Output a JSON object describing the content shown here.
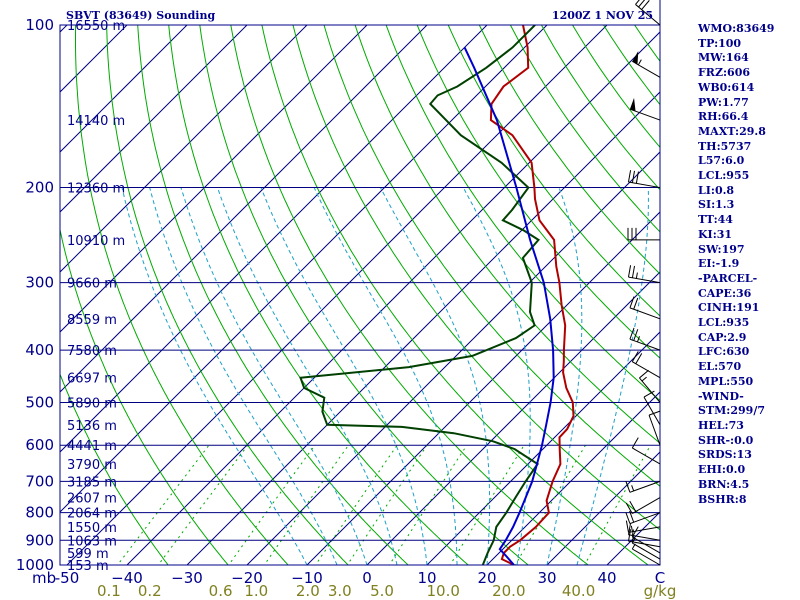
{
  "header": {
    "station": "SBVT (83649) Sounding",
    "time": "1200Z  1 NOV 25"
  },
  "chart_data": {
    "type": "line",
    "title": "SBVT (83649) Sounding",
    "subtitle": "1200Z  1 NOV 25",
    "x_axis": {
      "units_label": "mb",
      "temperature_ticks": [
        -50,
        -40,
        -30,
        -20,
        -10,
        0,
        10,
        20,
        30,
        40
      ],
      "temperature_tick_labels": [
        "-50",
        "−40",
        "−30",
        "−20",
        "−10",
        "0",
        "10",
        "20",
        "30",
        "40"
      ],
      "xlim": [
        -50,
        50
      ],
      "mixing_ratio_labels": [
        "0.1",
        "0.2",
        "0.6",
        "1.0",
        "2.0",
        "3.0",
        "5.0",
        "10.0",
        "20.0",
        "40.0"
      ],
      "mixing_ratio_values": [
        0.1,
        0.2,
        0.6,
        1.0,
        2.0,
        3.0,
        5.0,
        10.0,
        20.0,
        40.0
      ],
      "mixing_ratio_units": "g/kg",
      "corner_label": "C"
    },
    "y_axis": {
      "pressure_ticks": [
        100,
        200,
        300,
        400,
        500,
        600,
        700,
        800,
        900,
        1000
      ],
      "log_scale": true,
      "ylim": [
        1000,
        100
      ]
    },
    "height_labels": [
      {
        "p": 100,
        "label": "16550 m"
      },
      {
        "p": 150,
        "label": "14140 m"
      },
      {
        "p": 200,
        "label": "12360 m"
      },
      {
        "p": 250,
        "label": "10910 m"
      },
      {
        "p": 300,
        "label": "9660 m"
      },
      {
        "p": 350,
        "label": "8559 m"
      },
      {
        "p": 400,
        "label": "7580 m"
      },
      {
        "p": 450,
        "label": "6697 m"
      },
      {
        "p": 500,
        "label": "5890 m"
      },
      {
        "p": 550,
        "label": "5136 m"
      },
      {
        "p": 600,
        "label": "4441 m"
      },
      {
        "p": 650,
        "label": "3790 m"
      },
      {
        "p": 700,
        "label": "3185 m"
      },
      {
        "p": 750,
        "label": "2607 m"
      },
      {
        "p": 800,
        "label": "2064 m"
      },
      {
        "p": 850,
        "label": "1550 m"
      },
      {
        "p": 900,
        "label": "1063 m"
      },
      {
        "p": 950,
        "label": "599 m"
      },
      {
        "p": 1000,
        "label": "153 m"
      }
    ],
    "series": [
      {
        "name": "temperature",
        "color": "#b00000",
        "points": [
          [
            1000,
            24.5
          ],
          [
            975,
            21.5
          ],
          [
            950,
            20.8
          ],
          [
            925,
            20.8
          ],
          [
            900,
            21.4
          ],
          [
            850,
            21.8
          ],
          [
            800,
            21.6
          ],
          [
            760,
            19.2
          ],
          [
            700,
            17.0
          ],
          [
            650,
            15.4
          ],
          [
            610,
            12.8
          ],
          [
            580,
            10.8
          ],
          [
            560,
            10.7
          ],
          [
            530,
            9.6
          ],
          [
            500,
            7.2
          ],
          [
            470,
            3.7
          ],
          [
            440,
            0.6
          ],
          [
            420,
            -1.1
          ],
          [
            400,
            -3.0
          ],
          [
            360,
            -6.9
          ],
          [
            330,
            -10.9
          ],
          [
            300,
            -15.0
          ],
          [
            280,
            -18.2
          ],
          [
            250,
            -23.0
          ],
          [
            230,
            -28.7
          ],
          [
            210,
            -33.0
          ],
          [
            200,
            -35.0
          ],
          [
            180,
            -39.6
          ],
          [
            160,
            -47.4
          ],
          [
            150,
            -53.5
          ],
          [
            140,
            -56.1
          ],
          [
            130,
            -57.0
          ],
          [
            120,
            -56.0
          ],
          [
            110,
            -59.5
          ],
          [
            100,
            -64.0
          ]
        ]
      },
      {
        "name": "dewpoint",
        "color": "#004000",
        "points": [
          [
            1000,
            19.3
          ],
          [
            950,
            18.1
          ],
          [
            900,
            17.0
          ],
          [
            850,
            15.2
          ],
          [
            800,
            14.5
          ],
          [
            750,
            13.5
          ],
          [
            700,
            12.5
          ],
          [
            650,
            11.6
          ],
          [
            610,
            5.3
          ],
          [
            590,
            0.4
          ],
          [
            570,
            -7.5
          ],
          [
            555,
            -17.2
          ],
          [
            550,
            -30.0
          ],
          [
            520,
            -33.0
          ],
          [
            490,
            -35.0
          ],
          [
            470,
            -40.0
          ],
          [
            450,
            -42.3
          ],
          [
            430,
            -26.0
          ],
          [
            410,
            -17.3
          ],
          [
            380,
            -13.0
          ],
          [
            360,
            -12.0
          ],
          [
            340,
            -15.0
          ],
          [
            300,
            -19.6
          ],
          [
            270,
            -25.2
          ],
          [
            250,
            -25.6
          ],
          [
            240,
            -29.7
          ],
          [
            230,
            -34.8
          ],
          [
            220,
            -35.0
          ],
          [
            200,
            -36.0
          ],
          [
            180,
            -44.6
          ],
          [
            160,
            -56.0
          ],
          [
            140,
            -66.3
          ],
          [
            135,
            -66.5
          ],
          [
            130,
            -64.7
          ],
          [
            120,
            -63.0
          ],
          [
            110,
            -62.0
          ],
          [
            100,
            -62.0
          ]
        ]
      },
      {
        "name": "parcel",
        "color": "#0000cc",
        "points": [
          [
            1000,
            24.5
          ],
          [
            960,
            21.5
          ],
          [
            935,
            19.5
          ],
          [
            900,
            19.0
          ],
          [
            850,
            18.0
          ],
          [
            800,
            16.7
          ],
          [
            750,
            15.2
          ],
          [
            700,
            13.6
          ],
          [
            650,
            11.5
          ],
          [
            600,
            9.2
          ],
          [
            550,
            6.5
          ],
          [
            500,
            3.5
          ],
          [
            450,
            -0.1
          ],
          [
            400,
            -4.8
          ],
          [
            350,
            -10.5
          ],
          [
            300,
            -17.6
          ],
          [
            250,
            -27.0
          ],
          [
            200,
            -38.0
          ],
          [
            150,
            -52.5
          ],
          [
            120,
            -65.0
          ],
          [
            110,
            -70.0
          ]
        ]
      }
    ],
    "wind_barbs": [
      {
        "p": 1000,
        "dir": 300,
        "spd": 5
      },
      {
        "p": 975,
        "dir": 300,
        "spd": 5
      },
      {
        "p": 950,
        "dir": 300,
        "spd": 10
      },
      {
        "p": 925,
        "dir": 280,
        "spd": 15
      },
      {
        "p": 900,
        "dir": 280,
        "spd": 15
      },
      {
        "p": 850,
        "dir": 260,
        "spd": 15
      },
      {
        "p": 800,
        "dir": 250,
        "spd": 20
      },
      {
        "p": 750,
        "dir": 240,
        "spd": 20
      },
      {
        "p": 700,
        "dir": 250,
        "spd": 15
      },
      {
        "p": 650,
        "dir": 300,
        "spd": 10
      },
      {
        "p": 600,
        "dir": 340,
        "spd": 10
      },
      {
        "p": 550,
        "dir": 330,
        "spd": 10
      },
      {
        "p": 500,
        "dir": 320,
        "spd": 15
      },
      {
        "p": 450,
        "dir": 300,
        "spd": 20
      },
      {
        "p": 400,
        "dir": 290,
        "spd": 25
      },
      {
        "p": 350,
        "dir": 290,
        "spd": 20
      },
      {
        "p": 300,
        "dir": 280,
        "spd": 25
      },
      {
        "p": 250,
        "dir": 270,
        "spd": 30
      },
      {
        "p": 200,
        "dir": 280,
        "spd": 30
      },
      {
        "p": 150,
        "dir": 290,
        "spd": 50
      },
      {
        "p": 125,
        "dir": 300,
        "spd": 55
      },
      {
        "p": 100,
        "dir": 310,
        "spd": 30
      }
    ],
    "grid": true
  },
  "indices": [
    "WMO:83649",
    "TP:100",
    "MW:164",
    "FRZ:606",
    "WB0:614",
    "PW:1.77",
    "RH:66.4",
    "MAXT:29.8",
    "TH:5737",
    "L57:6.0",
    "LCL:955",
    "LI:0.8",
    "SI:1.3",
    "TT:44",
    "KI:31",
    "SW:197",
    "EI:-1.9",
    "-PARCEL-",
    "CAPE:36",
    "CINH:191",
    "LCL:935",
    "CAP:2.9",
    "LFC:630",
    "EL:570",
    "MPL:550",
    "-WIND-",
    "STM:299/7",
    "HEL:73",
    "SHR-:0.0",
    "SRDS:13",
    "EHI:0.0",
    "BRN:4.5",
    "BSHR:8"
  ],
  "colors": {
    "axes": "#00008b",
    "isotherm": "#000080",
    "dry_adiabat": "#00aa00",
    "moist_adiabat": "#1ca0c8",
    "mixing_ratio": "#00aa00",
    "mixing_label": "#808020"
  }
}
